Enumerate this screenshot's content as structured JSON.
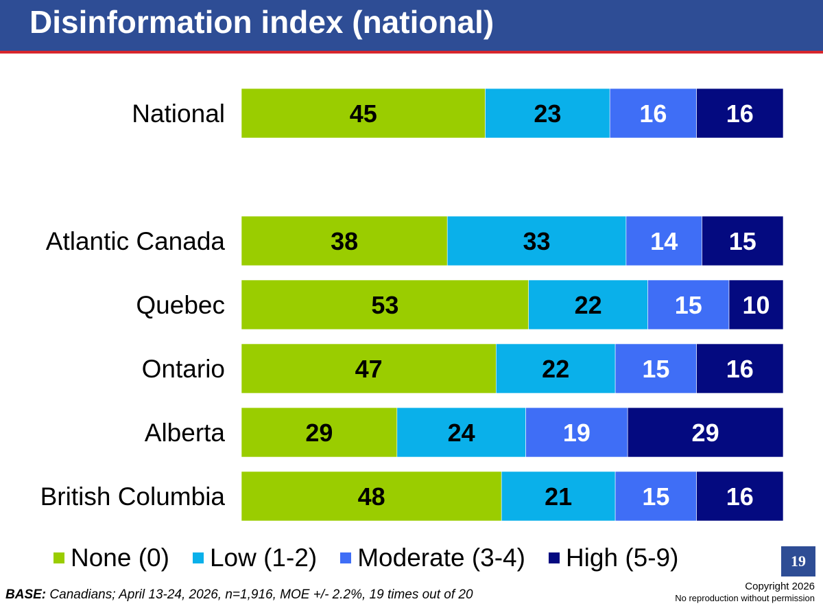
{
  "header": {
    "title": "Disinformation index (national)"
  },
  "chart_data": {
    "type": "bar",
    "orientation": "horizontal",
    "stacked": true,
    "categories": [
      "National",
      "Atlantic Canada",
      "Quebec",
      "Ontario",
      "Alberta",
      "British Columbia"
    ],
    "series": [
      {
        "name": "None (0)",
        "color": "#9acd00",
        "values": [
          45,
          38,
          53,
          47,
          29,
          48
        ]
      },
      {
        "name": "Low (1-2)",
        "color": "#0ab0ea",
        "values": [
          23,
          33,
          22,
          22,
          24,
          21
        ]
      },
      {
        "name": "Moderate (3-4)",
        "color": "#3f6ef6",
        "values": [
          16,
          14,
          15,
          15,
          19,
          15
        ]
      },
      {
        "name": "High (5-9)",
        "color": "#040a80",
        "values": [
          16,
          15,
          10,
          16,
          29,
          16
        ]
      }
    ],
    "legend_position": "bottom",
    "grid": false,
    "data_labels": true
  },
  "legend": {
    "items": [
      {
        "label": "None (0)",
        "color": "#9acd00"
      },
      {
        "label": "Low (1-2)",
        "color": "#0ab0ea"
      },
      {
        "label": "Moderate (3-4)",
        "color": "#3f6ef6"
      },
      {
        "label": "High (5-9)",
        "color": "#040a80"
      }
    ]
  },
  "footer": {
    "base_label": "BASE:",
    "base_text": " Canadians; April 13-24, 2026, n=1,916, MOE +/- 2.2%, 19 times out of 20",
    "page_number": "19",
    "copyright_line1": "Copyright 2026",
    "copyright_line2": "No reproduction without permission"
  },
  "colors": {
    "header_bg": "#2e4d95",
    "header_rule": "#d7262d"
  }
}
